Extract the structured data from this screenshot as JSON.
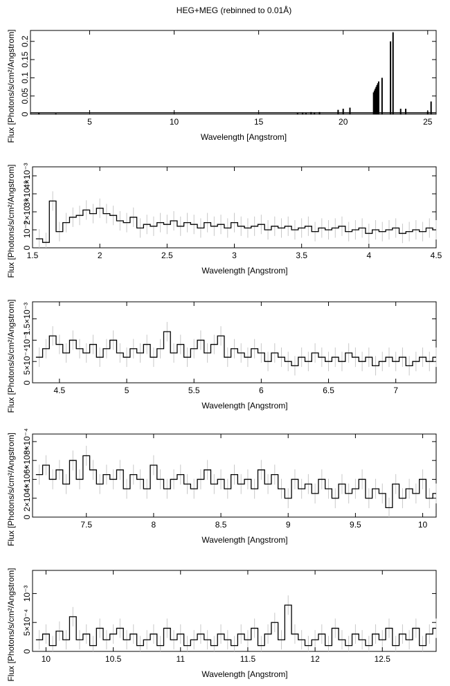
{
  "figure": {
    "title": "HEG+MEG (rebinned to 0.01Å)"
  },
  "chart_data": [
    {
      "type": "bar",
      "xlabel": "Wavelength [Angstrom]",
      "ylabel": "Flux [Photons/s/cm²/Angstrom]",
      "xlim": [
        1.5,
        25.5
      ],
      "ylim": [
        0,
        0.23
      ],
      "xticks": [
        5,
        10,
        15,
        20,
        25
      ],
      "yticks": [
        0,
        0.05,
        0.1,
        0.15,
        0.2
      ],
      "ytick_labels": [
        "0",
        "0.05",
        "0.1",
        "0.15",
        "0.2"
      ],
      "series": [
        {
          "x": [
            2.0,
            3.0,
            17.3,
            17.6,
            17.8,
            18.1,
            18.3,
            18.6,
            19.7,
            20.0,
            20.4,
            21.8,
            21.85,
            21.9,
            21.95,
            22.0,
            22.05,
            22.1,
            22.3,
            22.8,
            22.95,
            23.4,
            23.7,
            25.0,
            25.2
          ],
          "y": [
            0.003,
            0.002,
            0.004,
            0.005,
            0.004,
            0.006,
            0.005,
            0.006,
            0.012,
            0.015,
            0.018,
            0.06,
            0.065,
            0.07,
            0.075,
            0.08,
            0.085,
            0.09,
            0.1,
            0.2,
            0.225,
            0.015,
            0.015,
            0.008,
            0.035
          ]
        }
      ]
    },
    {
      "type": "line",
      "xlabel": "Wavelength [Angstrom]",
      "ylabel": "Flux [Photons/s/cm²/Angstrom]",
      "xlim": [
        1.5,
        4.5
      ],
      "ylim": [
        0,
        0.0045
      ],
      "xticks": [
        1.5,
        2,
        2.5,
        3,
        3.5,
        4,
        4.5
      ],
      "yticks": [
        0,
        0.001,
        0.002,
        0.003,
        0.004
      ],
      "ytick_labels": [
        "0",
        "10⁻³",
        "2×10⁻³",
        "3×10⁻³",
        "4×10⁻³"
      ],
      "series": [
        {
          "x": [
            1.55,
            1.6,
            1.65,
            1.7,
            1.75,
            1.8,
            1.85,
            1.9,
            1.95,
            2.0,
            2.05,
            2.1,
            2.15,
            2.2,
            2.25,
            2.3,
            2.35,
            2.4,
            2.45,
            2.5,
            2.55,
            2.6,
            2.65,
            2.7,
            2.75,
            2.8,
            2.85,
            2.9,
            2.95,
            3.0,
            3.05,
            3.1,
            3.15,
            3.2,
            3.25,
            3.3,
            3.35,
            3.4,
            3.45,
            3.5,
            3.55,
            3.6,
            3.65,
            3.7,
            3.75,
            3.8,
            3.85,
            3.9,
            3.95,
            4.0,
            4.05,
            4.1,
            4.15,
            4.2,
            4.25,
            4.3,
            4.35,
            4.4,
            4.45,
            4.5
          ],
          "y": [
            0.0005,
            0.0003,
            0.0026,
            0.0009,
            0.0014,
            0.0017,
            0.0018,
            0.0021,
            0.0019,
            0.0022,
            0.0019,
            0.0018,
            0.0015,
            0.0014,
            0.0017,
            0.0011,
            0.0013,
            0.0012,
            0.0014,
            0.0013,
            0.0015,
            0.0012,
            0.0014,
            0.0013,
            0.0011,
            0.0014,
            0.0012,
            0.0013,
            0.0011,
            0.0014,
            0.0012,
            0.0011,
            0.0012,
            0.0013,
            0.001,
            0.0012,
            0.0011,
            0.0012,
            0.001,
            0.0011,
            0.0012,
            0.0009,
            0.0011,
            0.001,
            0.0011,
            0.0012,
            0.0009,
            0.001,
            0.0011,
            0.0008,
            0.001,
            0.0009,
            0.001,
            0.0011,
            0.0008,
            0.0009,
            0.001,
            0.0009,
            0.0011,
            0.001
          ]
        }
      ]
    },
    {
      "type": "line",
      "xlabel": "Wavelength [Angstrom]",
      "ylabel": "Flux [Photons/s/cm²/Angstrom]",
      "xlim": [
        4.3,
        7.3
      ],
      "ylim": [
        0,
        0.0019
      ],
      "xticks": [
        4.5,
        5,
        5.5,
        6,
        6.5,
        7
      ],
      "yticks": [
        0,
        0.0005,
        0.001,
        0.0015
      ],
      "ytick_labels": [
        "0",
        "5×10⁻⁴",
        "10⁻³",
        "1.5×10⁻³"
      ],
      "series": [
        {
          "x": [
            4.35,
            4.4,
            4.45,
            4.5,
            4.55,
            4.6,
            4.65,
            4.7,
            4.75,
            4.8,
            4.85,
            4.9,
            4.95,
            5.0,
            5.05,
            5.1,
            5.15,
            5.2,
            5.25,
            5.3,
            5.35,
            5.4,
            5.45,
            5.5,
            5.55,
            5.6,
            5.65,
            5.7,
            5.75,
            5.8,
            5.85,
            5.9,
            5.95,
            6.0,
            6.05,
            6.1,
            6.15,
            6.2,
            6.25,
            6.3,
            6.35,
            6.4,
            6.45,
            6.5,
            6.55,
            6.6,
            6.65,
            6.7,
            6.75,
            6.8,
            6.85,
            6.9,
            6.95,
            7.0,
            7.05,
            7.1,
            7.15,
            7.2,
            7.25,
            7.3
          ],
          "y": [
            0.0006,
            0.0008,
            0.0011,
            0.0009,
            0.0007,
            0.001,
            0.0008,
            0.0007,
            0.0009,
            0.0006,
            0.0008,
            0.001,
            0.0007,
            0.0006,
            0.0008,
            0.0007,
            0.0009,
            0.0006,
            0.0008,
            0.0012,
            0.0007,
            0.0009,
            0.0006,
            0.0008,
            0.001,
            0.0007,
            0.0009,
            0.0011,
            0.0006,
            0.0008,
            0.0007,
            0.0006,
            0.0008,
            0.0007,
            0.0005,
            0.0007,
            0.0006,
            0.0005,
            0.0004,
            0.0006,
            0.0005,
            0.0007,
            0.0006,
            0.0005,
            0.0006,
            0.0005,
            0.0007,
            0.0006,
            0.0005,
            0.0006,
            0.0004,
            0.0005,
            0.0006,
            0.0005,
            0.0006,
            0.0004,
            0.0005,
            0.0006,
            0.0005,
            0.0006
          ]
        }
      ]
    },
    {
      "type": "line",
      "xlabel": "Wavelength [Angstrom]",
      "ylabel": "Flux [Photons/s/cm²/Angstrom]",
      "xlim": [
        7.1,
        10.1
      ],
      "ylim": [
        0,
        0.00088
      ],
      "xticks": [
        7.5,
        8,
        8.5,
        9,
        9.5,
        10
      ],
      "yticks": [
        0,
        0.0002,
        0.0004,
        0.0006,
        0.0008
      ],
      "ytick_labels": [
        "0",
        "2×10⁻⁴",
        "4×10⁻⁴",
        "6×10⁻⁴",
        "8×10⁻⁴"
      ],
      "series": [
        {
          "x": [
            7.15,
            7.2,
            7.25,
            7.3,
            7.35,
            7.4,
            7.45,
            7.5,
            7.55,
            7.6,
            7.65,
            7.7,
            7.75,
            7.8,
            7.85,
            7.9,
            7.95,
            8.0,
            8.05,
            8.1,
            8.15,
            8.2,
            8.25,
            8.3,
            8.35,
            8.4,
            8.45,
            8.5,
            8.55,
            8.6,
            8.65,
            8.7,
            8.75,
            8.8,
            8.85,
            8.9,
            8.95,
            9.0,
            9.05,
            9.1,
            9.15,
            9.2,
            9.25,
            9.3,
            9.35,
            9.4,
            9.45,
            9.5,
            9.55,
            9.6,
            9.65,
            9.7,
            9.75,
            9.8,
            9.85,
            9.9,
            9.95,
            10.0,
            10.05,
            10.1
          ],
          "y": [
            0.00045,
            0.00055,
            0.0004,
            0.0005,
            0.00035,
            0.0006,
            0.0004,
            0.00065,
            0.0005,
            0.00035,
            0.00045,
            0.0004,
            0.0005,
            0.0003,
            0.00045,
            0.0004,
            0.0003,
            0.00055,
            0.0004,
            0.0003,
            0.0004,
            0.00045,
            0.00035,
            0.0003,
            0.0004,
            0.0005,
            0.00035,
            0.0004,
            0.0003,
            0.00045,
            0.00035,
            0.0004,
            0.0003,
            0.0005,
            0.00035,
            0.00045,
            0.0003,
            0.0002,
            0.0004,
            0.0003,
            0.00035,
            0.00025,
            0.0004,
            0.0003,
            0.0002,
            0.00035,
            0.00025,
            0.0003,
            0.0004,
            0.0002,
            0.0003,
            0.00025,
            0.0001,
            0.00035,
            0.0002,
            0.0003,
            0.00025,
            0.0004,
            0.0002,
            0.00025
          ]
        }
      ]
    },
    {
      "type": "line",
      "xlabel": "Wavelength [Angstrom]",
      "ylabel": "Flux [Photons/s/cm²/Angstrom]",
      "xlim": [
        9.9,
        12.9
      ],
      "ylim": [
        0,
        0.0014
      ],
      "xticks": [
        10,
        10.5,
        11,
        11.5,
        12,
        12.5
      ],
      "yticks": [
        0,
        0.0005,
        0.001
      ],
      "ytick_labels": [
        "0",
        "5×10⁻⁴",
        "10⁻³"
      ],
      "series": [
        {
          "x": [
            9.95,
            10.0,
            10.05,
            10.1,
            10.15,
            10.2,
            10.25,
            10.3,
            10.35,
            10.4,
            10.45,
            10.5,
            10.55,
            10.6,
            10.65,
            10.7,
            10.75,
            10.8,
            10.85,
            10.9,
            10.95,
            11.0,
            11.05,
            11.1,
            11.15,
            11.2,
            11.25,
            11.3,
            11.35,
            11.4,
            11.45,
            11.5,
            11.55,
            11.6,
            11.65,
            11.7,
            11.75,
            11.8,
            11.85,
            11.9,
            11.95,
            12.0,
            12.05,
            12.1,
            12.15,
            12.2,
            12.25,
            12.3,
            12.35,
            12.4,
            12.45,
            12.5,
            12.55,
            12.6,
            12.65,
            12.7,
            12.75,
            12.8,
            12.85,
            12.9
          ],
          "y": [
            0.0002,
            0.0003,
            0.0001,
            0.00035,
            0.0002,
            0.0006,
            0.0002,
            0.0003,
            0.0001,
            0.0004,
            0.0002,
            0.0003,
            0.0004,
            0.0002,
            0.0003,
            0.0001,
            0.0002,
            0.0003,
            0.0001,
            0.0004,
            0.0002,
            0.0003,
            0.0001,
            0.0002,
            0.0003,
            0.0002,
            0.0001,
            0.0003,
            0.0002,
            0.0001,
            0.0003,
            0.0002,
            0.0004,
            0.0001,
            0.0003,
            0.0005,
            0.0002,
            0.0008,
            0.0003,
            0.0002,
            0.0001,
            0.0002,
            0.0003,
            0.0001,
            0.0004,
            0.0002,
            0.0001,
            0.0003,
            0.0002,
            0.0001,
            0.0003,
            0.0002,
            0.0004,
            0.0001,
            0.0003,
            0.0002,
            0.0004,
            0.0001,
            0.0003,
            0.0004
          ]
        }
      ]
    }
  ]
}
